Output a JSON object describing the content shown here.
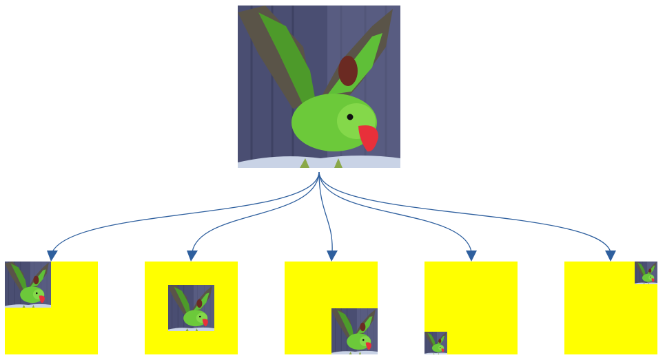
{
  "source_image": {
    "subject": "parrot-photo",
    "wing_color": "#4d9a2a",
    "body_color": "#6cc93a",
    "beak_color": "#e8303a",
    "background_color": "#4a4e72",
    "perch_color": "#c9d3e6"
  },
  "connectors": {
    "color": "#2e5f9e",
    "style": "curved-arrows"
  },
  "outputs": {
    "canvas_color": "#ffff00",
    "count": 5,
    "placements": [
      "top-left",
      "center",
      "bottom-right",
      "bottom-left-small",
      "top-right-small"
    ]
  }
}
